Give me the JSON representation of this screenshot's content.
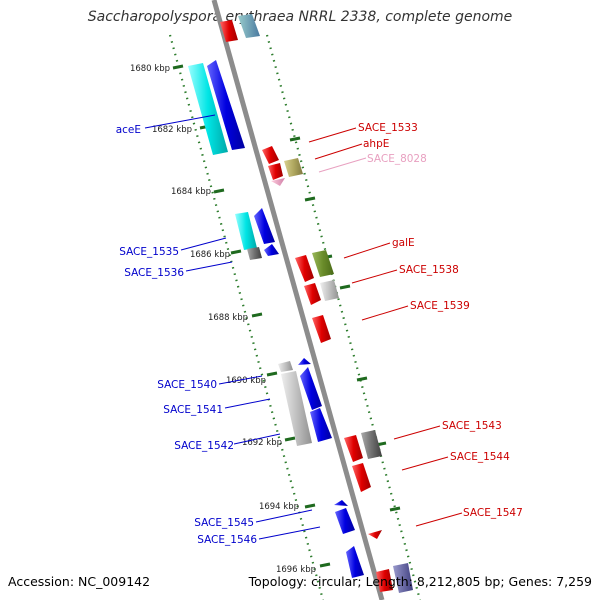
{
  "title": "Saccharopolyspora erythraea NRRL 2338, complete genome",
  "accession_text": "Accession: NC_009142",
  "summary_text": "Topology: circular; Length: 8,212,805 bp; Genes: 7,259",
  "scale_labels": [
    "1680 kbp",
    "1682 kbp",
    "1684 kbp",
    "1686 kbp",
    "1688 kbp",
    "1690 kbp",
    "1692 kbp",
    "1694 kbp",
    "1696 kbp"
  ],
  "colors": {
    "backbone": "#8c8c8c",
    "ruler_dots": "#2e7d2e",
    "reverse_strand_label": "#0000cc",
    "forward_strand_label": "#cc0000",
    "pseudo_label": "#e8a0c0",
    "cyan": "#00e5e5",
    "blue": "#0000e0",
    "red": "#e00000",
    "olive": "#b0a860",
    "green": "#6a8c2a",
    "gray": "#c0c0c0",
    "darkgray": "#707070",
    "pink": "#e8a0c0"
  },
  "gene_labels_left": [
    {
      "name": "aceE",
      "color": "#0000cc"
    },
    {
      "name": "SACE_1535",
      "color": "#0000cc"
    },
    {
      "name": "SACE_1536",
      "color": "#0000cc"
    },
    {
      "name": "SACE_1540",
      "color": "#0000cc"
    },
    {
      "name": "SACE_1541",
      "color": "#0000cc"
    },
    {
      "name": "SACE_1542",
      "color": "#0000cc"
    },
    {
      "name": "SACE_1545",
      "color": "#0000cc"
    },
    {
      "name": "SACE_1546",
      "color": "#0000cc"
    }
  ],
  "gene_labels_right": [
    {
      "name": "SACE_1533",
      "color": "#cc0000"
    },
    {
      "name": "ahpE",
      "color": "#cc0000"
    },
    {
      "name": "SACE_8028",
      "color": "#e8a0c0"
    },
    {
      "name": "galE",
      "color": "#cc0000"
    },
    {
      "name": "SACE_1538",
      "color": "#cc0000"
    },
    {
      "name": "SACE_1539",
      "color": "#cc0000"
    },
    {
      "name": "SACE_1543",
      "color": "#cc0000"
    },
    {
      "name": "SACE_1544",
      "color": "#cc0000"
    },
    {
      "name": "SACE_1547",
      "color": "#cc0000"
    }
  ]
}
